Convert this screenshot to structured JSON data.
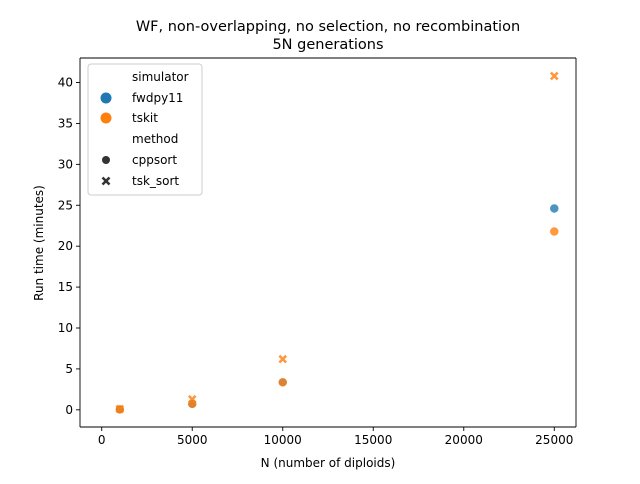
{
  "chart_data": {
    "type": "scatter",
    "title": "WF, non-overlapping, no selection, no recombination",
    "subtitle": "5N generations",
    "xlabel": "N (number of diploids)",
    "ylabel": "Run time (minutes)",
    "xlim": [
      -1200,
      26200
    ],
    "ylim": [
      -2.1,
      43.0
    ],
    "x_ticks": [
      0,
      5000,
      10000,
      15000,
      20000,
      25000
    ],
    "y_ticks": [
      0,
      5,
      10,
      15,
      20,
      25,
      30,
      35,
      40
    ],
    "grid": false,
    "legend_position": "top-left",
    "legend": {
      "hue_title": "simulator",
      "hue_entries": [
        {
          "label": "fwdpy11",
          "color": "#1f77b4"
        },
        {
          "label": "tskit",
          "color": "#ff7f0e"
        }
      ],
      "style_title": "method",
      "style_entries": [
        {
          "label": "cppsort",
          "marker": "circle"
        },
        {
          "label": "tsk_sort",
          "marker": "x"
        }
      ]
    },
    "series": [
      {
        "simulator": "fwdpy11",
        "method": "cppsort",
        "marker": "circle",
        "color": "#1f77b4",
        "x": [
          1000,
          5000,
          10000,
          25000
        ],
        "y": [
          0.03,
          0.7,
          3.4,
          24.6
        ]
      },
      {
        "simulator": "tskit",
        "method": "cppsort",
        "marker": "circle",
        "color": "#ff7f0e",
        "x": [
          1000,
          5000,
          10000,
          25000
        ],
        "y": [
          0.05,
          0.72,
          3.35,
          21.8
        ]
      },
      {
        "simulator": "tskit",
        "method": "tsk_sort",
        "marker": "x",
        "color": "#ff7f0e",
        "x": [
          1000,
          5000,
          10000,
          25000
        ],
        "y": [
          0.1,
          1.3,
          6.2,
          40.8
        ]
      }
    ]
  }
}
